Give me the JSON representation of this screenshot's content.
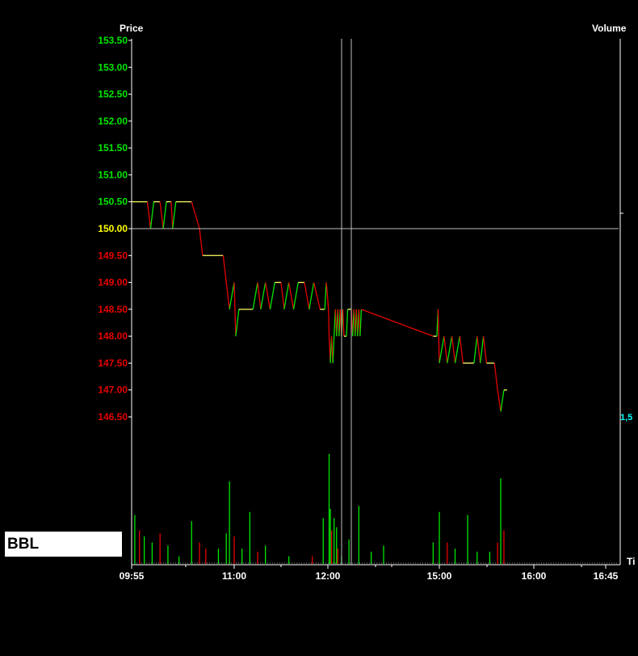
{
  "symbol": "BBL",
  "colors": {
    "background": "#000000",
    "up": "#00e600",
    "down": "#e60000",
    "flat": "#ffff66",
    "reference": "#ffff00",
    "crosshair": "#c0c0c0",
    "axis_label": "#ffffff",
    "volume_tick": "#00ffff"
  },
  "chart_data": {
    "type": "line",
    "title": "",
    "price_label": "Price",
    "volume_label": "Volume",
    "time_label": "Ti",
    "reference_price": 150.0,
    "price_ticks": [
      "153.50",
      "153.00",
      "152.50",
      "152.00",
      "151.50",
      "151.00",
      "150.50",
      "150.00",
      "149.50",
      "149.00",
      "148.50",
      "148.00",
      "147.50",
      "147.00",
      "146.50"
    ],
    "price_range": [
      146.5,
      153.5
    ],
    "volume_ticks": [
      "1,5"
    ],
    "time_ticks": [
      "09:55",
      "11:00",
      "12:00",
      "15:00",
      "16:00",
      "16:45"
    ],
    "price_series": [
      [
        "09:55",
        150.5
      ],
      [
        "10:05",
        150.5
      ],
      [
        "10:07",
        150.0
      ],
      [
        "10:09",
        150.5
      ],
      [
        "10:13",
        150.5
      ],
      [
        "10:15",
        150.0
      ],
      [
        "10:17",
        150.5
      ],
      [
        "10:20",
        150.5
      ],
      [
        "10:21",
        150.0
      ],
      [
        "10:23",
        150.5
      ],
      [
        "10:33",
        150.5
      ],
      [
        "10:38",
        150.0
      ],
      [
        "10:40",
        149.5
      ],
      [
        "10:53",
        149.5
      ],
      [
        "10:57",
        148.5
      ],
      [
        "11:00",
        149.0
      ],
      [
        "11:01",
        148.0
      ],
      [
        "11:03",
        148.5
      ],
      [
        "11:12",
        148.5
      ],
      [
        "11:15",
        149.0
      ],
      [
        "11:17",
        148.5
      ],
      [
        "11:20",
        149.0
      ],
      [
        "11:23",
        148.5
      ],
      [
        "11:26",
        149.0
      ],
      [
        "11:30",
        149.0
      ],
      [
        "11:32",
        148.5
      ],
      [
        "11:35",
        149.0
      ],
      [
        "11:38",
        148.5
      ],
      [
        "11:41",
        149.0
      ],
      [
        "11:45",
        149.0
      ],
      [
        "11:48",
        148.5
      ],
      [
        "11:51",
        149.0
      ],
      [
        "11:55",
        148.5
      ],
      [
        "11:58",
        148.5
      ],
      [
        "11:59",
        149.0
      ],
      [
        "12:01",
        148.5
      ],
      [
        "12:02",
        148.0
      ],
      [
        "12:04",
        147.5
      ],
      [
        "12:06",
        148.0
      ],
      [
        "12:08",
        147.5
      ],
      [
        "12:10",
        148.0
      ],
      [
        "12:12",
        148.5
      ],
      [
        "12:14",
        148.0
      ],
      [
        "12:16",
        148.5
      ],
      [
        "12:18",
        148.0
      ],
      [
        "12:20",
        148.5
      ],
      [
        "12:22",
        148.0
      ],
      [
        "12:24",
        148.5
      ],
      [
        "12:26",
        148.0
      ],
      [
        "12:30",
        148.0
      ],
      [
        "12:32",
        148.5
      ],
      [
        "12:38",
        148.5
      ],
      [
        "12:40",
        148.0
      ],
      [
        "12:42",
        148.5
      ],
      [
        "12:44",
        148.0
      ],
      [
        "12:46",
        148.5
      ],
      [
        "12:48",
        148.0
      ],
      [
        "12:50",
        148.5
      ],
      [
        "12:52",
        148.0
      ],
      [
        "12:54",
        148.5
      ],
      [
        "14:50",
        148.0
      ],
      [
        "14:56",
        148.0
      ],
      [
        "14:58",
        148.5
      ],
      [
        "15:00",
        147.5
      ],
      [
        "15:03",
        148.0
      ],
      [
        "15:05",
        147.5
      ],
      [
        "15:08",
        148.0
      ],
      [
        "15:10",
        147.5
      ],
      [
        "15:13",
        148.0
      ],
      [
        "15:15",
        147.5
      ],
      [
        "15:22",
        147.5
      ],
      [
        "15:24",
        148.0
      ],
      [
        "15:26",
        147.5
      ],
      [
        "15:28",
        148.0
      ],
      [
        "15:30",
        147.5
      ],
      [
        "15:35",
        147.5
      ],
      [
        "15:37",
        147.0
      ],
      [
        "15:39",
        146.6
      ],
      [
        "15:41",
        147.0
      ],
      [
        "15:43",
        147.0
      ]
    ],
    "volume_series": [
      [
        "09:57",
        0.32,
        "up"
      ],
      [
        "10:00",
        0.22,
        "down"
      ],
      [
        "10:03",
        0.18,
        "up"
      ],
      [
        "10:08",
        0.14,
        "up"
      ],
      [
        "10:13",
        0.2,
        "down"
      ],
      [
        "10:18",
        0.12,
        "up"
      ],
      [
        "10:25",
        0.05,
        "up"
      ],
      [
        "10:33",
        0.28,
        "up"
      ],
      [
        "10:38",
        0.14,
        "down"
      ],
      [
        "10:42",
        0.1,
        "down"
      ],
      [
        "10:50",
        0.1,
        "up"
      ],
      [
        "10:55",
        0.2,
        "up"
      ],
      [
        "10:57",
        0.54,
        "up"
      ],
      [
        "11:00",
        0.18,
        "down"
      ],
      [
        "11:05",
        0.1,
        "up"
      ],
      [
        "11:10",
        0.34,
        "up"
      ],
      [
        "11:15",
        0.08,
        "down"
      ],
      [
        "11:20",
        0.12,
        "up"
      ],
      [
        "11:35",
        0.05,
        "up"
      ],
      [
        "11:50",
        0.05,
        "down"
      ],
      [
        "11:57",
        0.3,
        "up"
      ],
      [
        "12:02",
        0.72,
        "up"
      ],
      [
        "12:04",
        0.36,
        "up"
      ],
      [
        "12:06",
        0.22,
        "down"
      ],
      [
        "12:10",
        0.3,
        "up"
      ],
      [
        "12:14",
        0.24,
        "up"
      ],
      [
        "12:16",
        0.1,
        "down"
      ],
      [
        "12:22",
        0.05,
        "up"
      ],
      [
        "12:34",
        0.16,
        "up"
      ],
      [
        "12:50",
        0.38,
        "up"
      ],
      [
        "13:10",
        0.08,
        "up"
      ],
      [
        "13:30",
        0.12,
        "up"
      ],
      [
        "14:50",
        0.14,
        "up"
      ],
      [
        "15:00",
        0.34,
        "up"
      ],
      [
        "15:05",
        0.14,
        "down"
      ],
      [
        "15:10",
        0.1,
        "up"
      ],
      [
        "15:18",
        0.32,
        "up"
      ],
      [
        "15:24",
        0.08,
        "up"
      ],
      [
        "15:32",
        0.08,
        "up"
      ],
      [
        "15:37",
        0.14,
        "down"
      ],
      [
        "15:39",
        0.56,
        "up"
      ],
      [
        "15:41",
        0.22,
        "down"
      ]
    ],
    "crosshair": {
      "price": 150.0,
      "time": "12:30"
    },
    "grid": false
  }
}
